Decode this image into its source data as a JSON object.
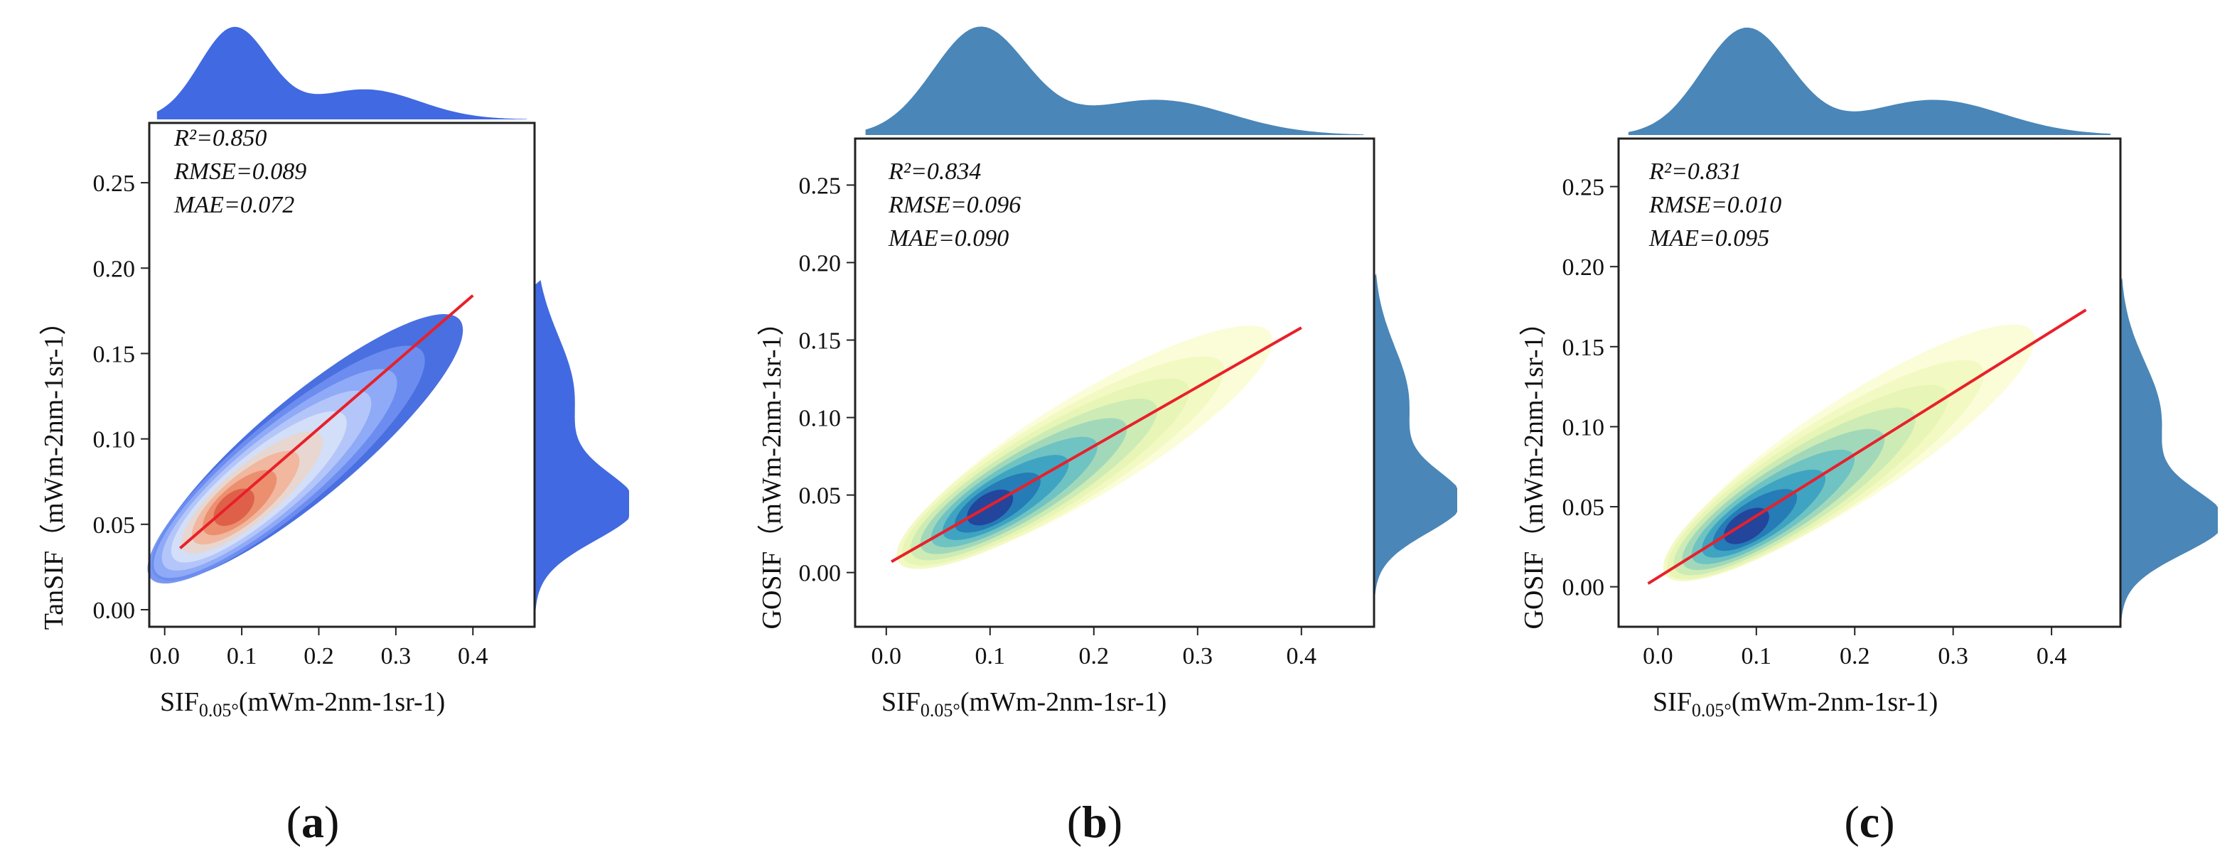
{
  "chart_data": [
    {
      "type": "scatter",
      "subtype": "kde-joint-plot",
      "panel_label": "a",
      "colors": {
        "marginal": "#4169E1",
        "fit": "#e8202a",
        "palette": "coolwarm"
      },
      "xlabel": "SIF",
      "xlabel_sub": "0.05°",
      "xlabel_units": "(mWm-2nm-1sr-1)",
      "xlabel_full": "SIF0.05°(mWm-2nm-1sr-1)",
      "ylabel": "TanSIF",
      "ylabel_units": "（mWm-2nm-1sr-1）",
      "xlim": [
        -0.02,
        0.48
      ],
      "ylim": [
        -0.01,
        0.285
      ],
      "xticks": [
        0.0,
        0.1,
        0.2,
        0.3,
        0.4
      ],
      "xtick_labels": [
        "0.0",
        "0.1",
        "0.2",
        "0.3",
        "0.4"
      ],
      "yticks": [
        0.0,
        0.05,
        0.1,
        0.15,
        0.2,
        0.25
      ],
      "ytick_labels": [
        "0.00",
        "0.05",
        "0.10",
        "0.15",
        "0.20",
        "0.25"
      ],
      "stats": {
        "r2": "R²=0.850",
        "rmse": "RMSE=0.089",
        "mae": "MAE=0.072"
      },
      "fit_line": {
        "x": [
          0.02,
          0.4
        ],
        "y": [
          0.036,
          0.184
        ]
      },
      "density_ridge": {
        "x": [
          0.0,
          0.1,
          0.2,
          0.3,
          0.37
        ],
        "y": [
          0.025,
          0.06,
          0.105,
          0.145,
          0.165
        ]
      },
      "density_peak": {
        "x": 0.09,
        "y": 0.06
      },
      "marginal_x_peaks": [
        0.09,
        0.26
      ],
      "marginal_y_peak": 0.06
    },
    {
      "type": "scatter",
      "subtype": "kde-joint-plot",
      "panel_label": "b",
      "colors": {
        "marginal": "#4a86b8",
        "fit": "#e8202a",
        "palette": "YlGnBu"
      },
      "xlabel": "SIF",
      "xlabel_sub": "0.05°",
      "xlabel_units": "(mWm-2nm-1sr-1)",
      "xlabel_full": "SIF0.05°(mWm-2nm-1sr-1)",
      "ylabel": "GOSIF",
      "ylabel_units": "（mWm-2nm-1sr-1）",
      "xlim": [
        -0.03,
        0.47
      ],
      "ylim": [
        -0.035,
        0.28
      ],
      "xticks": [
        0.0,
        0.1,
        0.2,
        0.3,
        0.4
      ],
      "xtick_labels": [
        "0.0",
        "0.1",
        "0.2",
        "0.3",
        "0.4"
      ],
      "yticks": [
        0.0,
        0.05,
        0.1,
        0.15,
        0.2,
        0.25
      ],
      "ytick_labels": [
        "0.00",
        "0.05",
        "0.10",
        "0.15",
        "0.20",
        "0.25"
      ],
      "stats": {
        "r2": "R²=0.834",
        "rmse": "RMSE=0.096",
        "mae": "MAE=0.090"
      },
      "fit_line": {
        "x": [
          0.005,
          0.4
        ],
        "y": [
          0.007,
          0.158
        ]
      },
      "density_ridge": {
        "x": [
          0.03,
          0.1,
          0.2,
          0.3,
          0.36
        ],
        "y": [
          0.015,
          0.042,
          0.085,
          0.13,
          0.15
        ]
      },
      "density_peak": {
        "x": 0.1,
        "y": 0.042
      },
      "marginal_x_peaks": [
        0.09,
        0.26
      ],
      "marginal_y_peak": 0.045
    },
    {
      "type": "scatter",
      "subtype": "kde-joint-plot",
      "panel_label": "c",
      "colors": {
        "marginal": "#4a86b8",
        "fit": "#e8202a",
        "palette": "YlGnBu"
      },
      "xlabel": "SIF",
      "xlabel_sub": "0.05°",
      "xlabel_units": "(mWm-2nm-1sr-1)",
      "xlabel_full": "SIF0.05°(mWm-2nm-1sr-1)",
      "ylabel": "GOSIF",
      "ylabel_units": "（mWm-2nm-1sr-1）",
      "xlim": [
        -0.04,
        0.47
      ],
      "ylim": [
        -0.025,
        0.28
      ],
      "xticks": [
        0.0,
        0.1,
        0.2,
        0.3,
        0.4
      ],
      "xtick_labels": [
        "0.0",
        "0.1",
        "0.2",
        "0.3",
        "0.4"
      ],
      "yticks": [
        0.0,
        0.05,
        0.1,
        0.15,
        0.2,
        0.25
      ],
      "ytick_labels": [
        "0.00",
        "0.05",
        "0.10",
        "0.15",
        "0.20",
        "0.25"
      ],
      "stats": {
        "r2": "R²=0.831",
        "rmse": "RMSE=0.010",
        "mae": "MAE=0.095"
      },
      "fit_line": {
        "x": [
          -0.01,
          0.435
        ],
        "y": [
          0.002,
          0.173
        ]
      },
      "density_ridge": {
        "x": [
          0.03,
          0.1,
          0.2,
          0.3,
          0.37
        ],
        "y": [
          0.018,
          0.04,
          0.085,
          0.13,
          0.155
        ]
      },
      "density_peak": {
        "x": 0.09,
        "y": 0.038
      },
      "marginal_x_peaks": [
        0.09,
        0.28
      ],
      "marginal_y_peak": 0.04
    }
  ]
}
